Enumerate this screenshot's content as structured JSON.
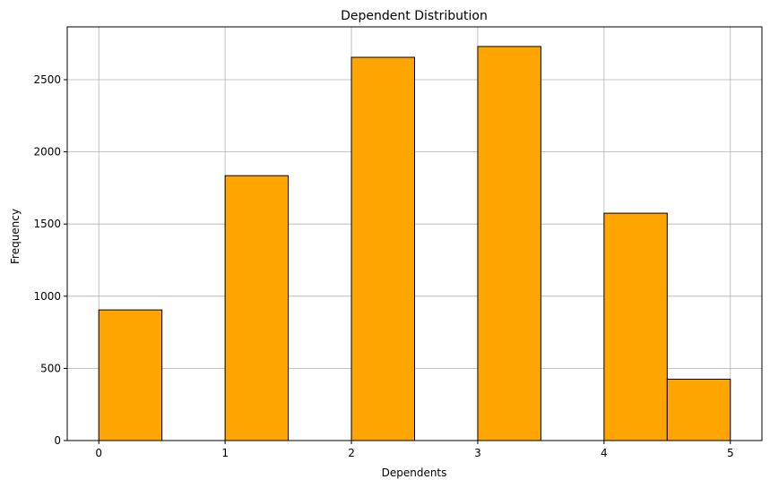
{
  "chart_data": {
    "type": "bar",
    "title": "Dependent Distribution",
    "xlabel": "Dependents",
    "ylabel": "Frequency",
    "bins": [
      {
        "x0": 0.0,
        "x1": 0.5,
        "value": 905
      },
      {
        "x0": 0.5,
        "x1": 1.0,
        "value": 0
      },
      {
        "x0": 1.0,
        "x1": 1.5,
        "value": 1835
      },
      {
        "x0": 1.5,
        "x1": 2.0,
        "value": 0
      },
      {
        "x0": 2.0,
        "x1": 2.5,
        "value": 2655
      },
      {
        "x0": 2.5,
        "x1": 3.0,
        "value": 0
      },
      {
        "x0": 3.0,
        "x1": 3.5,
        "value": 2730
      },
      {
        "x0": 3.5,
        "x1": 4.0,
        "value": 0
      },
      {
        "x0": 4.0,
        "x1": 4.5,
        "value": 1575
      },
      {
        "x0": 4.5,
        "x1": 5.0,
        "value": 425
      }
    ],
    "xlim": [
      -0.25,
      5.25
    ],
    "ylim": [
      0,
      2866
    ],
    "xticks": [
      "0",
      "1",
      "2",
      "3",
      "4",
      "5"
    ],
    "yticks": [
      "0",
      "500",
      "1000",
      "1500",
      "2000",
      "2500"
    ],
    "grid": true,
    "colors": {
      "bar_fill": "#FFA500",
      "bar_edge": "#000000",
      "grid": "#b0b0b0"
    }
  }
}
